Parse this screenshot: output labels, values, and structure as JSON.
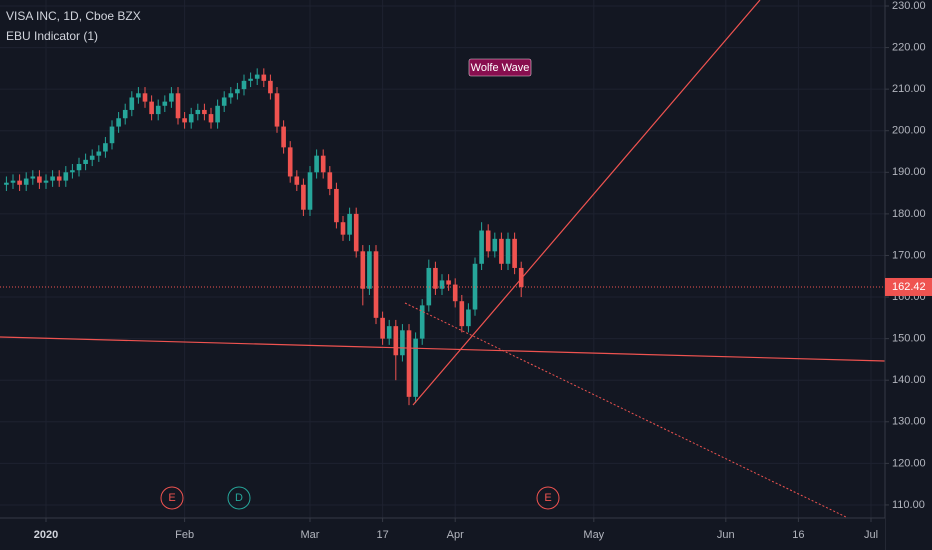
{
  "chart_data": {
    "type": "candlestick",
    "title": "VISA INC, 1D, Cboe BZX",
    "subtitle": "EBU Indicator (1)",
    "annotation": "Wolfe Wave",
    "events": [
      "E",
      "D",
      "E"
    ],
    "up_color": "#26a69a",
    "down_color": "#ef5350",
    "grid": true,
    "x": [
      -6,
      -5,
      -4,
      -3,
      -2,
      -1,
      0,
      1,
      2,
      3,
      4,
      5,
      6,
      7,
      8,
      9,
      10,
      11,
      12,
      13,
      14,
      15,
      16,
      17,
      18,
      19,
      20,
      21,
      22,
      23,
      24,
      25,
      26,
      27,
      28,
      29,
      30,
      31,
      32,
      33,
      34,
      35,
      36,
      37,
      38,
      39,
      40,
      41,
      42,
      43,
      44,
      45,
      46,
      47,
      48,
      49,
      50,
      51,
      52,
      53,
      54,
      55,
      56,
      57,
      58,
      59,
      60,
      61,
      62,
      63,
      64,
      65,
      66,
      67,
      68,
      69,
      70,
      71,
      72
    ],
    "open": [
      187,
      187.5,
      188,
      187,
      188.5,
      189,
      187.5,
      188,
      189,
      188,
      190,
      190.5,
      192,
      193,
      194,
      195,
      197,
      201,
      203,
      205,
      208,
      209,
      207,
      204,
      206,
      207,
      209,
      203,
      202,
      204,
      205,
      204,
      202,
      206,
      208,
      209,
      210,
      212,
      212.5,
      213.5,
      212,
      209,
      201,
      196,
      189,
      187,
      181,
      190,
      194,
      190,
      186,
      178,
      175,
      180,
      171,
      162,
      171,
      155,
      150,
      153,
      146,
      152,
      136,
      150,
      158,
      167,
      162,
      164,
      163,
      159,
      153,
      157,
      168,
      176,
      171,
      174,
      168,
      174,
      167
    ],
    "high": [
      189,
      189.5,
      189.5,
      190,
      190.5,
      190.5,
      189.5,
      190.5,
      190.5,
      191.5,
      192,
      193.5,
      194.5,
      195.5,
      196.5,
      198.5,
      202.5,
      204.5,
      206.5,
      209.5,
      210.5,
      210.5,
      208.5,
      207.5,
      208.5,
      210.5,
      210.5,
      204.5,
      205.5,
      206.5,
      206.5,
      205.5,
      207.5,
      209.5,
      210.5,
      211.5,
      213.5,
      214,
      215,
      215,
      213.5,
      210.5,
      202.5,
      197.5,
      190.5,
      188.5,
      191.5,
      195.5,
      195.5,
      191.5,
      187.5,
      179.5,
      181.5,
      181.5,
      172.5,
      172.5,
      172.5,
      156.5,
      154.5,
      154.5,
      153.5,
      153.5,
      151.5,
      159.5,
      169,
      168.5,
      165.5,
      165.5,
      164.5,
      160.5,
      158.5,
      169.5,
      178,
      177.5,
      175.5,
      175.5,
      175.5,
      175.5,
      168.5
    ],
    "low": [
      185.5,
      186,
      185.5,
      185.5,
      187,
      186,
      186,
      186.5,
      186.5,
      186.5,
      188.5,
      189,
      190.5,
      191.5,
      192.5,
      193.5,
      195.5,
      199.5,
      201.5,
      203.5,
      206.5,
      205.5,
      202.5,
      202.5,
      204.5,
      205.5,
      201.5,
      200.5,
      200.5,
      202.5,
      202.5,
      200.5,
      200.5,
      204.5,
      206.5,
      207.5,
      208.5,
      210.5,
      211,
      210.5,
      207.5,
      199.5,
      194.5,
      187.5,
      185.5,
      179.5,
      179.5,
      188.5,
      188.5,
      184.5,
      176.5,
      173.5,
      173.5,
      169.5,
      158,
      160.5,
      153.5,
      148.5,
      148.5,
      140,
      144.5,
      134,
      134.5,
      148.5,
      156.5,
      160.5,
      160.5,
      161.5,
      157.5,
      151.5,
      151.5,
      155.5,
      166.5,
      169.5,
      169.5,
      166.5,
      166.5,
      165.5,
      160
    ],
    "close": [
      187.5,
      188,
      187,
      188.5,
      189,
      187.5,
      188,
      189,
      188,
      190,
      190.5,
      192,
      193,
      194,
      195,
      197,
      201,
      203,
      205,
      208,
      209,
      207,
      204,
      206,
      207,
      209,
      203,
      202,
      204,
      205,
      204,
      202,
      206,
      208,
      209,
      210,
      212,
      212.5,
      213.5,
      212,
      209,
      201,
      196,
      189,
      187,
      181,
      190,
      194,
      190,
      186,
      178,
      175,
      180,
      171,
      162,
      171,
      155,
      150,
      153,
      146,
      152,
      136,
      150,
      158,
      167,
      162,
      164,
      163,
      159,
      153,
      157,
      168,
      176,
      171,
      174,
      168,
      174,
      167,
      162.42
    ],
    "xlim": [
      -6.97,
      127.12
    ],
    "xticks": [
      {
        "value": 0,
        "label": "2020"
      },
      {
        "value": 21,
        "label": "Feb"
      },
      {
        "value": 40,
        "label": "Mar"
      },
      {
        "value": 51,
        "label": "17"
      },
      {
        "value": 62,
        "label": "Apr"
      },
      {
        "value": 83,
        "label": "May"
      },
      {
        "value": 103,
        "label": "Jun"
      },
      {
        "value": 114,
        "label": "16"
      },
      {
        "value": 125,
        "label": "Jul"
      }
    ],
    "ylim": [
      106.86,
      231.44
    ],
    "yticks": [
      {
        "value": 110,
        "label": "110.00"
      },
      {
        "value": 120,
        "label": "120.00"
      },
      {
        "value": 130,
        "label": "130.00"
      },
      {
        "value": 140,
        "label": "140.00"
      },
      {
        "value": 150,
        "label": "150.00"
      },
      {
        "value": 160,
        "label": "160.00"
      },
      {
        "value": 170,
        "label": "170.00"
      },
      {
        "value": 180,
        "label": "180.00"
      },
      {
        "value": 190,
        "label": "190.00"
      },
      {
        "value": 200,
        "label": "200.00"
      },
      {
        "value": 210,
        "label": "210.00"
      },
      {
        "value": 220,
        "label": "220.00"
      },
      {
        "value": 230,
        "label": "230.00"
      }
    ]
  }
}
